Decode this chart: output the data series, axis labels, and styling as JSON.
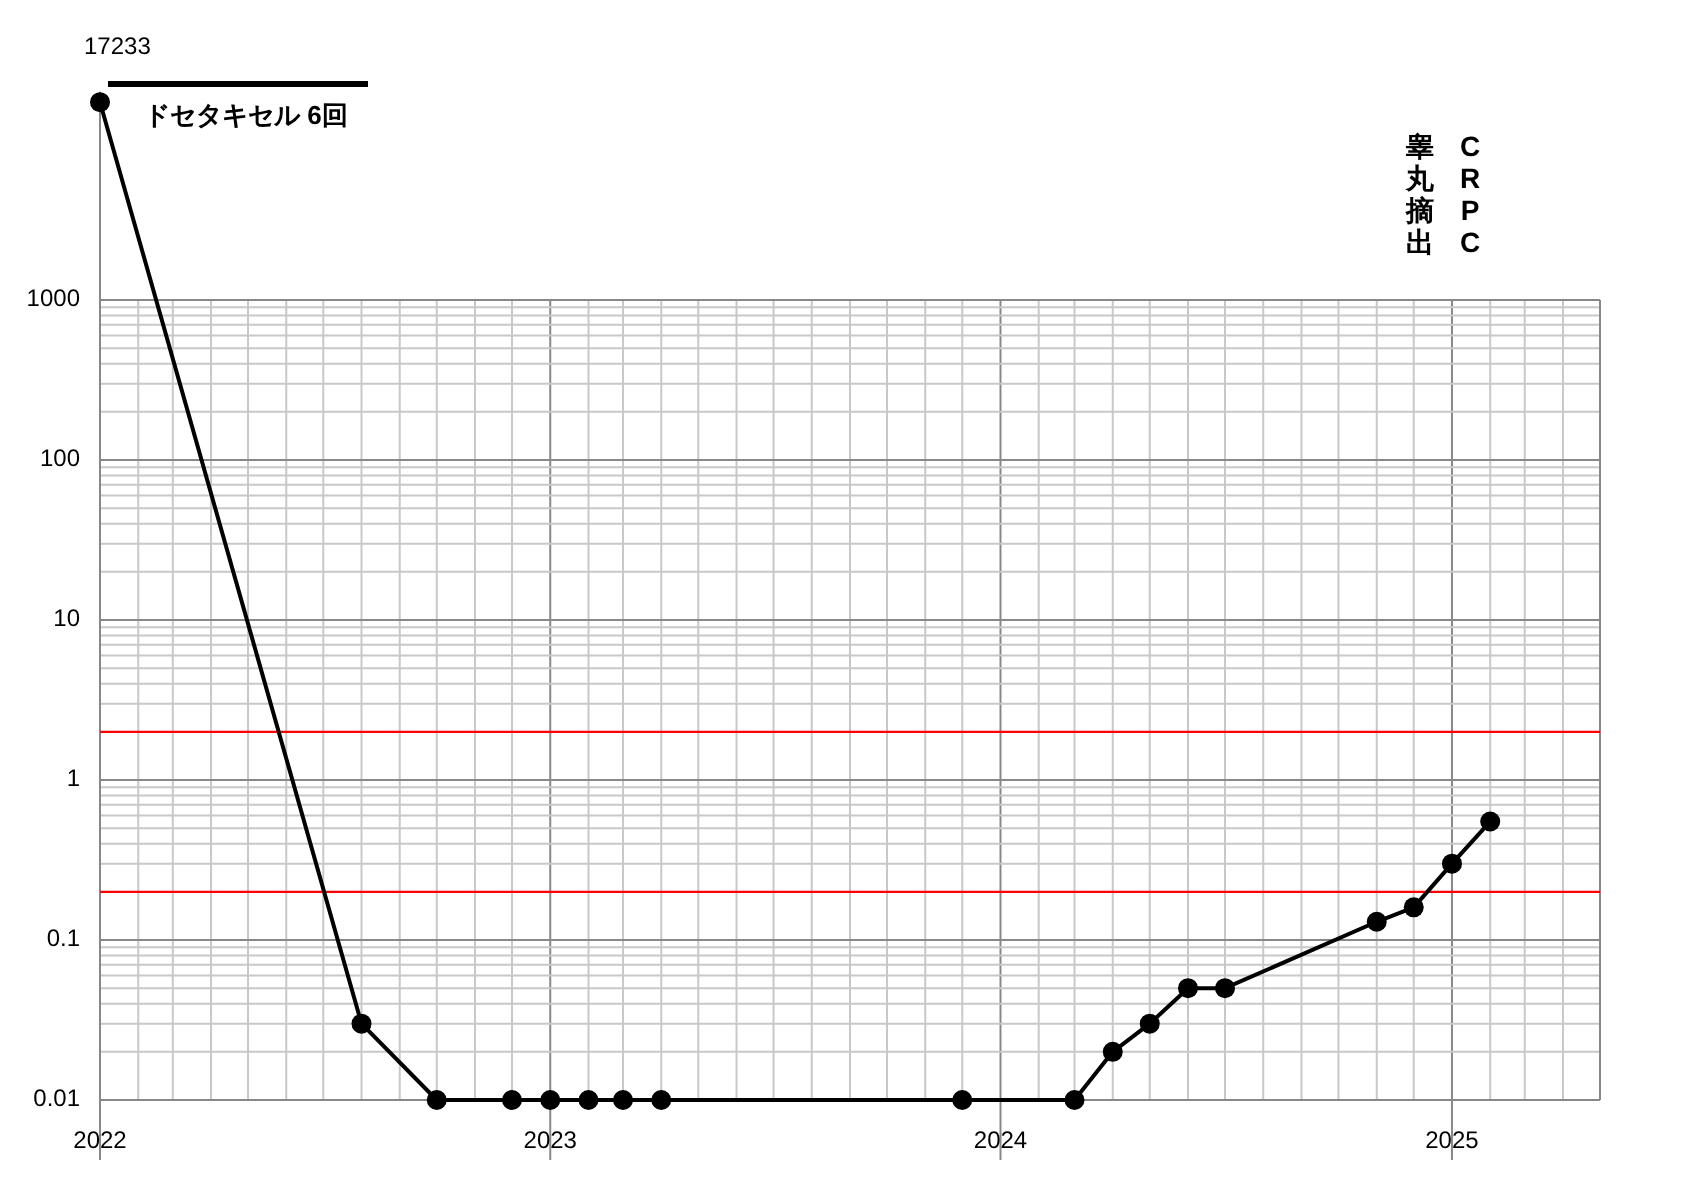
{
  "chart_data": {
    "type": "line",
    "x": [
      "2022-01-01",
      "2022-08-01",
      "2022-10-01",
      "2022-12-01",
      "2023-01-01",
      "2023-02-01",
      "2023-03-01",
      "2023-04-01",
      "2023-12-01",
      "2024-03-01",
      "2024-04-01",
      "2024-05-01",
      "2024-06-01",
      "2024-07-01",
      "2024-11-01",
      "2024-12-01",
      "2025-01-01",
      "2025-02-01"
    ],
    "series": [
      {
        "color": "#000000",
        "values": [
          17233,
          0.03,
          0.01,
          0.01,
          0.01,
          0.01,
          0.01,
          0.01,
          0.01,
          0.01,
          0.02,
          0.03,
          0.05,
          0.05,
          0.13,
          0.16,
          0.3,
          0.55
        ],
        "value_labels": [
          "17233",
          null,
          null,
          null,
          null,
          null,
          null,
          null,
          null,
          null,
          null,
          null,
          null,
          null,
          null,
          null,
          null,
          null
        ]
      }
    ],
    "log": true,
    "ylim": [
      0.01,
      20000
    ],
    "yticks": [
      0.01,
      {
        "value": 0.02,
        "label": null
      },
      {
        "value": 0.03,
        "label": null
      },
      {
        "value": 0.04,
        "label": null
      },
      {
        "value": 0.05,
        "label": null
      },
      {
        "value": 0.06,
        "label": null
      },
      {
        "value": 0.07,
        "label": null
      },
      {
        "value": 0.08,
        "label": null
      },
      {
        "value": 0.09,
        "label": null
      },
      0.1,
      {
        "value": 0.3,
        "label": null
      },
      {
        "value": 0.4,
        "label": null
      },
      {
        "value": 0.5,
        "label": null
      },
      {
        "value": 0.6,
        "label": null
      },
      {
        "value": 0.7,
        "label": null
      },
      {
        "value": 0.8,
        "label": null
      },
      {
        "value": 0.9,
        "label": null
      },
      1,
      {
        "value": 3,
        "label": null
      },
      {
        "value": 4,
        "label": null
      },
      {
        "value": 5,
        "label": null
      },
      {
        "value": 6,
        "label": null
      },
      {
        "value": 7,
        "label": null
      },
      {
        "value": 8,
        "label": null
      },
      {
        "value": 9,
        "label": null
      },
      10,
      {
        "value": 20,
        "label": null
      },
      {
        "value": 30,
        "label": null
      },
      {
        "value": 40,
        "label": null
      },
      {
        "value": 50,
        "label": null
      },
      {
        "value": 60,
        "label": null
      },
      {
        "value": 70,
        "label": null
      },
      {
        "value": 80,
        "label": null
      },
      {
        "value": 90,
        "label": null
      },
      100,
      {
        "value": 200,
        "label": null
      },
      {
        "value": 300,
        "label": null
      },
      {
        "value": 400,
        "label": null
      },
      {
        "value": 500,
        "label": null
      },
      {
        "value": 600,
        "label": null
      },
      {
        "value": 700,
        "label": null
      },
      {
        "value": 800,
        "label": null
      },
      {
        "value": 900,
        "label": null
      },
      1000
    ],
    "xlim": [
      "2022-01-01",
      "2025-05-01"
    ],
    "xticks": [
      {
        "value": "2022-01-01",
        "label": "2022"
      },
      {
        "value": "2022-02-01",
        "label": null
      },
      {
        "value": "2022-03-01",
        "label": null
      },
      {
        "value": "2022-04-01",
        "label": null
      },
      {
        "value": "2022-05-01",
        "label": null
      },
      {
        "value": "2022-06-01",
        "label": null
      },
      {
        "value": "2022-07-01",
        "label": null
      },
      {
        "value": "2022-08-01",
        "label": null
      },
      {
        "value": "2022-09-01",
        "label": null
      },
      {
        "value": "2022-10-01",
        "label": null
      },
      {
        "value": "2022-11-01",
        "label": null
      },
      {
        "value": "2022-12-01",
        "label": null
      },
      {
        "value": "2023-01-01",
        "label": "2023"
      },
      {
        "value": "2023-02-01",
        "label": null
      },
      {
        "value": "2023-03-01",
        "label": null
      },
      {
        "value": "2023-04-01",
        "label": null
      },
      {
        "value": "2023-05-01",
        "label": null
      },
      {
        "value": "2023-06-01",
        "label": null
      },
      {
        "value": "2023-07-01",
        "label": null
      },
      {
        "value": "2023-08-01",
        "label": null
      },
      {
        "value": "2023-09-01",
        "label": null
      },
      {
        "value": "2023-10-01",
        "label": null
      },
      {
        "value": "2023-11-01",
        "label": null
      },
      {
        "value": "2023-12-01",
        "label": null
      },
      {
        "value": "2024-01-01",
        "label": "2024"
      },
      {
        "value": "2024-02-01",
        "label": null
      },
      {
        "value": "2024-03-01",
        "label": null
      },
      {
        "value": "2024-04-01",
        "label": null
      },
      {
        "value": "2024-05-01",
        "label": null
      },
      {
        "value": "2024-06-01",
        "label": null
      },
      {
        "value": "2024-07-01",
        "label": null
      },
      {
        "value": "2024-08-01",
        "label": null
      },
      {
        "value": "2024-09-01",
        "label": null
      },
      {
        "value": "2024-10-01",
        "label": null
      },
      {
        "value": "2024-11-01",
        "label": null
      },
      {
        "value": "2024-12-01",
        "label": null
      },
      {
        "value": "2025-01-01",
        "label": "2025"
      },
      {
        "value": "2025-02-01",
        "label": null
      },
      {
        "value": "2025-03-01",
        "label": null
      },
      {
        "value": "2025-04-01",
        "label": null
      },
      {
        "value": "2025-05-01",
        "label": null
      }
    ],
    "grid": true,
    "marker": "circle",
    "line_style": "solid",
    "ref_lines": [
      {
        "axis": "y",
        "value": 2,
        "color": "#ff0000"
      },
      {
        "axis": "y",
        "value": 0.2,
        "color": "#ff0000"
      }
    ],
    "annotations": [
      "ドセタキセル 6回",
      "睾丸摘出",
      "CRPC"
    ]
  }
}
